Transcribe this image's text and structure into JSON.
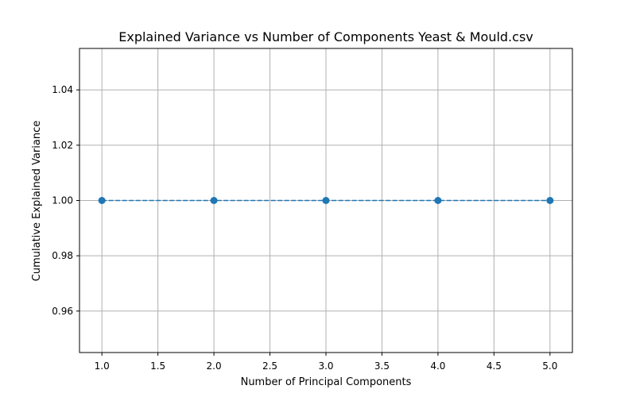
{
  "chart_data": {
    "type": "line",
    "title": "Explained Variance vs Number of Components Yeast & Mould.csv",
    "xlabel": "Number of Principal Components",
    "ylabel": "Cumulative Explained Variance",
    "x": [
      1,
      2,
      3,
      4,
      5
    ],
    "series": [
      {
        "values": [
          1.0,
          1.0,
          1.0,
          1.0,
          1.0
        ]
      }
    ],
    "xlim": [
      0.8,
      5.2
    ],
    "ylim": [
      0.945,
      1.055
    ],
    "xticks": [
      1.0,
      1.5,
      2.0,
      2.5,
      3.0,
      3.5,
      4.0,
      4.5,
      5.0
    ],
    "xtick_labels": [
      "1.0",
      "1.5",
      "2.0",
      "2.5",
      "3.0",
      "3.5",
      "4.0",
      "4.5",
      "5.0"
    ],
    "yticks": [
      0.96,
      0.98,
      1.0,
      1.02,
      1.04
    ],
    "ytick_labels": [
      "0.96",
      "0.98",
      "1.00",
      "1.02",
      "1.04"
    ],
    "grid": true,
    "line_style": "dashed",
    "marker": "circle",
    "colors": {
      "series": "#1f77b4",
      "grid": "#b0b0b0",
      "axis": "#000000"
    }
  }
}
